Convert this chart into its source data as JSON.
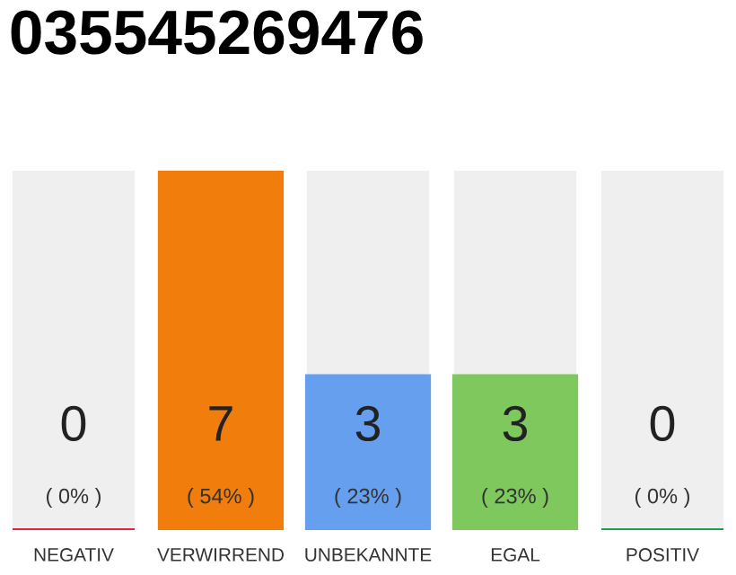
{
  "chart_data": {
    "type": "bar",
    "title": "035545269476",
    "categories": [
      "NEGATIV",
      "VERWIRREND",
      "UNBEKANNTE",
      "EGAL",
      "POSITIV"
    ],
    "values": [
      0,
      7,
      3,
      3,
      0
    ],
    "colors": [
      "#e8203a",
      "#f07d0c",
      "#659fee",
      "#7ec85e",
      "#21a04a"
    ],
    "value_labels": [
      "0",
      "7",
      "3",
      "3",
      "0"
    ],
    "annotations": [
      "( 0% )",
      "( 54% )",
      "( 23% )",
      "( 23% )",
      "( 0% )"
    ],
    "grid": false,
    "legend": false
  }
}
